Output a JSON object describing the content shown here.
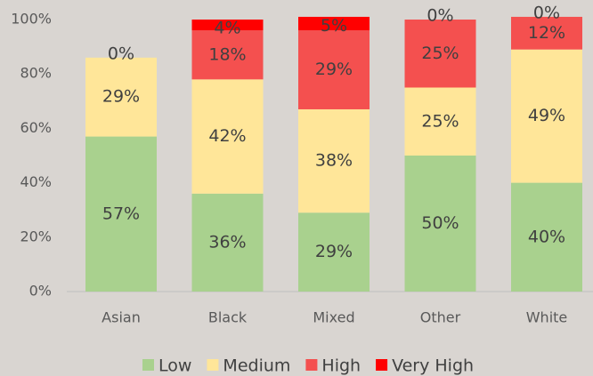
{
  "chart_data": {
    "type": "stacked_bar",
    "categories": [
      "Asian",
      "Black",
      "Mixed",
      "Other",
      "White"
    ],
    "series": [
      {
        "name": "Low",
        "color": "#a9d18e",
        "values": [
          57,
          36,
          29,
          50,
          40
        ],
        "value_labels": [
          "57%",
          "36%",
          "29%",
          "50%",
          "40%"
        ]
      },
      {
        "name": "Medium",
        "color": "#ffe699",
        "values": [
          29,
          42,
          38,
          25,
          49
        ],
        "value_labels": [
          "29%",
          "42%",
          "38%",
          "25%",
          "49%"
        ]
      },
      {
        "name": "High",
        "color": "#f4504f",
        "values": [
          0,
          18,
          29,
          25,
          12
        ],
        "value_labels": [
          "0%",
          "18%",
          "29%",
          "25%",
          "12%"
        ]
      },
      {
        "name": "Very High",
        "color": "#ff0000",
        "values": [
          null,
          4,
          5,
          0,
          0
        ],
        "value_labels": [
          null,
          "4%",
          "5%",
          "0%",
          "0%"
        ]
      }
    ],
    "ylim": [
      0,
      100
    ],
    "yticks": [
      {
        "value": 0,
        "label": "0%"
      },
      {
        "value": 20,
        "label": "20%"
      },
      {
        "value": 40,
        "label": "40%"
      },
      {
        "value": 60,
        "label": "60%"
      },
      {
        "value": 80,
        "label": "80%"
      },
      {
        "value": 100,
        "label": "100%"
      }
    ],
    "grid": false,
    "legend": "bottom"
  }
}
